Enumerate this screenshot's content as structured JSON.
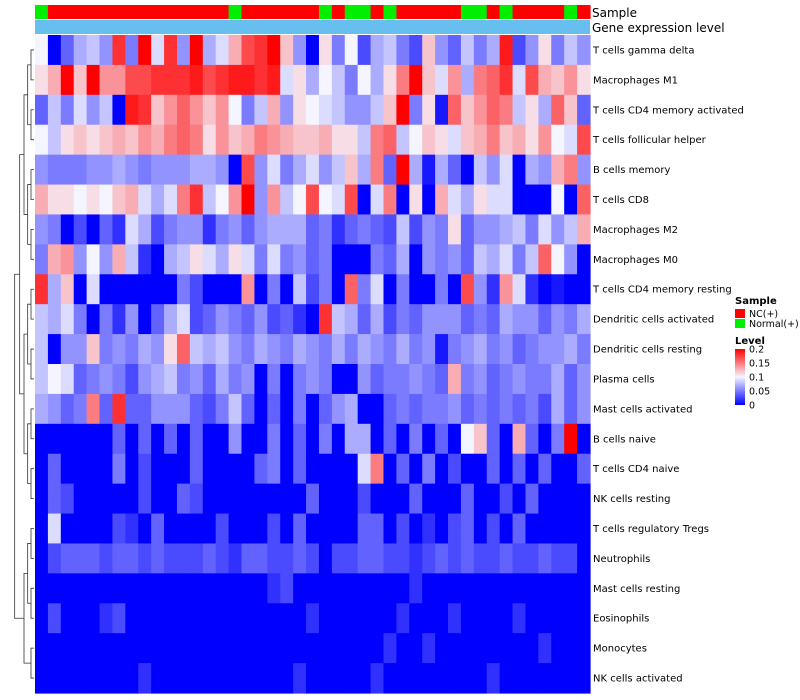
{
  "chart_data": {
    "type": "heatmap",
    "title": "",
    "annotation_track_labels": [
      "Sample",
      "Gene expression level"
    ],
    "samples": [
      "N",
      "C",
      "C",
      "C",
      "C",
      "C",
      "C",
      "C",
      "C",
      "C",
      "C",
      "C",
      "C",
      "C",
      "C",
      "N",
      "C",
      "C",
      "C",
      "C",
      "C",
      "C",
      "N",
      "C",
      "N",
      "N",
      "C",
      "N",
      "C",
      "C",
      "C",
      "C",
      "C",
      "N",
      "N",
      "C",
      "N",
      "C",
      "C",
      "C",
      "C",
      "N",
      "C"
    ],
    "rows": [
      "T cells gamma delta",
      "Macrophages M1",
      "T cells CD4 memory activated",
      "T cells follicular helper",
      "B cells memory",
      "T cells CD8",
      "Macrophages M2",
      "Macrophages M0",
      "T cells CD4 memory resting",
      "Dendritic cells activated",
      "Dendritic cells resting",
      "Plasma cells",
      "Mast cells activated",
      "B cells naive",
      "T cells CD4 naive",
      "NK cells resting",
      "T cells regulatory  Tregs",
      "Neutrophils",
      "Mast cells resting",
      "Eosinophils",
      "Monocytes",
      "NK cells activated"
    ],
    "values": [
      [
        0.1,
        0.0,
        0.04,
        0.07,
        0.08,
        0.06,
        0.18,
        0.05,
        0.2,
        0.09,
        0.18,
        0.06,
        0.2,
        0.07,
        0.09,
        0.13,
        0.17,
        0.18,
        0.2,
        0.12,
        0.06,
        0.0,
        0.11,
        0.05,
        0.1,
        0.03,
        0.07,
        0.08,
        0.05,
        0.03,
        0.12,
        0.06,
        0.04,
        0.08,
        0.05,
        0.07,
        0.19,
        0.03,
        0.06,
        0.11,
        0.05,
        0.08,
        0.06
      ],
      [
        0.11,
        0.13,
        0.2,
        0.12,
        0.2,
        0.14,
        0.14,
        0.17,
        0.17,
        0.18,
        0.18,
        0.18,
        0.19,
        0.17,
        0.18,
        0.19,
        0.19,
        0.18,
        0.19,
        0.09,
        0.11,
        0.07,
        0.1,
        0.08,
        0.05,
        0.1,
        0.07,
        0.11,
        0.15,
        0.2,
        0.12,
        0.09,
        0.14,
        0.07,
        0.15,
        0.16,
        0.18,
        0.09,
        0.17,
        0.13,
        0.12,
        0.14,
        0.11
      ],
      [
        0.04,
        0.08,
        0.05,
        0.09,
        0.06,
        0.08,
        0.0,
        0.19,
        0.18,
        0.12,
        0.14,
        0.16,
        0.14,
        0.12,
        0.14,
        0.1,
        0.05,
        0.08,
        0.13,
        0.06,
        0.11,
        0.1,
        0.09,
        0.08,
        0.06,
        0.06,
        0.08,
        0.12,
        0.2,
        0.05,
        0.11,
        0.01,
        0.16,
        0.12,
        0.14,
        0.16,
        0.15,
        0.08,
        0.11,
        0.07,
        0.16,
        0.12,
        0.04
      ],
      [
        0.1,
        0.08,
        0.11,
        0.12,
        0.11,
        0.12,
        0.13,
        0.12,
        0.14,
        0.13,
        0.15,
        0.16,
        0.15,
        0.11,
        0.14,
        0.12,
        0.13,
        0.15,
        0.14,
        0.13,
        0.12,
        0.12,
        0.13,
        0.11,
        0.11,
        0.08,
        0.15,
        0.16,
        0.08,
        0.1,
        0.12,
        0.11,
        0.09,
        0.12,
        0.13,
        0.15,
        0.12,
        0.13,
        0.11,
        0.14,
        0.1,
        0.09,
        0.17
      ],
      [
        0.06,
        0.05,
        0.05,
        0.05,
        0.06,
        0.06,
        0.07,
        0.06,
        0.05,
        0.06,
        0.06,
        0.06,
        0.07,
        0.07,
        0.06,
        0.0,
        0.17,
        0.06,
        0.09,
        0.05,
        0.07,
        0.09,
        0.06,
        0.08,
        0.12,
        0.07,
        0.15,
        0.04,
        0.2,
        0.07,
        0.01,
        0.07,
        0.04,
        0.0,
        0.08,
        0.06,
        0.09,
        0.0,
        0.07,
        0.06,
        0.13,
        0.15,
        0.06
      ],
      [
        0.13,
        0.11,
        0.11,
        0.1,
        0.11,
        0.1,
        0.12,
        0.13,
        0.09,
        0.07,
        0.09,
        0.15,
        0.18,
        0.08,
        0.1,
        0.14,
        0.2,
        0.06,
        0.14,
        0.08,
        0.1,
        0.17,
        0.1,
        0.09,
        0.17,
        0.0,
        0.09,
        0.15,
        0.0,
        0.11,
        0.0,
        0.13,
        0.09,
        0.07,
        0.11,
        0.09,
        0.09,
        0.0,
        0.0,
        0.0,
        0.1,
        0.0,
        0.16
      ],
      [
        0.06,
        0.05,
        0.0,
        0.03,
        0.0,
        0.04,
        0.02,
        0.09,
        0.07,
        0.03,
        0.05,
        0.06,
        0.06,
        0.02,
        0.05,
        0.06,
        0.04,
        0.06,
        0.07,
        0.07,
        0.07,
        0.04,
        0.05,
        0.02,
        0.04,
        0.05,
        0.04,
        0.03,
        0.08,
        0.03,
        0.06,
        0.05,
        0.11,
        0.04,
        0.06,
        0.06,
        0.07,
        0.08,
        0.05,
        0.09,
        0.06,
        0.08,
        0.13
      ],
      [
        0.05,
        0.13,
        0.14,
        0.06,
        0.1,
        0.06,
        0.13,
        0.08,
        0.02,
        0.0,
        0.07,
        0.08,
        0.11,
        0.09,
        0.07,
        0.11,
        0.09,
        0.05,
        0.09,
        0.05,
        0.06,
        0.04,
        0.05,
        0.0,
        0.0,
        0.0,
        0.05,
        0.04,
        0.07,
        0.0,
        0.06,
        0.05,
        0.06,
        0.04,
        0.08,
        0.07,
        0.09,
        0.05,
        0.08,
        0.16,
        0.1,
        0.06,
        0.0
      ],
      [
        0.18,
        0.07,
        0.12,
        0.0,
        0.09,
        0.0,
        0.0,
        0.0,
        0.0,
        0.0,
        0.0,
        0.05,
        0.03,
        0.0,
        0.0,
        0.0,
        0.14,
        0.0,
        0.05,
        0.0,
        0.08,
        0.03,
        0.05,
        0.0,
        0.16,
        0.05,
        0.09,
        0.0,
        0.05,
        0.0,
        0.0,
        0.05,
        0.0,
        0.17,
        0.06,
        0.02,
        0.14,
        0.09,
        0.02,
        0.0,
        0.01,
        0.0,
        0.0
      ],
      [
        0.08,
        0.07,
        0.09,
        0.05,
        0.0,
        0.05,
        0.02,
        0.06,
        0.0,
        0.04,
        0.07,
        0.09,
        0.03,
        0.04,
        0.06,
        0.05,
        0.04,
        0.06,
        0.03,
        0.04,
        0.02,
        0.0,
        0.18,
        0.08,
        0.07,
        0.04,
        0.07,
        0.03,
        0.05,
        0.04,
        0.06,
        0.06,
        0.06,
        0.04,
        0.05,
        0.04,
        0.07,
        0.06,
        0.06,
        0.04,
        0.06,
        0.05,
        0.07
      ],
      [
        0.08,
        0.0,
        0.06,
        0.06,
        0.12,
        0.05,
        0.06,
        0.05,
        0.07,
        0.06,
        0.11,
        0.16,
        0.08,
        0.07,
        0.08,
        0.06,
        0.05,
        0.07,
        0.06,
        0.05,
        0.07,
        0.06,
        0.05,
        0.07,
        0.05,
        0.07,
        0.06,
        0.05,
        0.07,
        0.05,
        0.06,
        0.01,
        0.05,
        0.06,
        0.07,
        0.05,
        0.06,
        0.04,
        0.05,
        0.06,
        0.06,
        0.07,
        0.05
      ],
      [
        0.08,
        0.1,
        0.09,
        0.04,
        0.05,
        0.06,
        0.05,
        0.03,
        0.06,
        0.07,
        0.08,
        0.05,
        0.06,
        0.04,
        0.07,
        0.05,
        0.06,
        0.0,
        0.05,
        0.0,
        0.05,
        0.06,
        0.05,
        0.0,
        0.0,
        0.06,
        0.04,
        0.05,
        0.05,
        0.06,
        0.05,
        0.04,
        0.13,
        0.05,
        0.06,
        0.04,
        0.05,
        0.06,
        0.05,
        0.05,
        0.07,
        0.04,
        0.06
      ],
      [
        0.07,
        0.06,
        0.04,
        0.05,
        0.15,
        0.04,
        0.18,
        0.04,
        0.04,
        0.06,
        0.06,
        0.06,
        0.04,
        0.03,
        0.05,
        0.08,
        0.04,
        0.0,
        0.04,
        0.0,
        0.05,
        0.0,
        0.04,
        0.06,
        0.07,
        0.0,
        0.0,
        0.04,
        0.05,
        0.04,
        0.05,
        0.05,
        0.06,
        0.04,
        0.05,
        0.04,
        0.05,
        0.04,
        0.05,
        0.03,
        0.07,
        0.04,
        0.06
      ],
      [
        0.0,
        0.0,
        0.0,
        0.0,
        0.0,
        0.0,
        0.04,
        0.0,
        0.04,
        0.0,
        0.04,
        0.0,
        0.04,
        0.0,
        0.0,
        0.06,
        0.0,
        0.0,
        0.05,
        0.0,
        0.04,
        0.0,
        0.05,
        0.0,
        0.07,
        0.07,
        0.0,
        0.04,
        0.0,
        0.05,
        0.0,
        0.04,
        0.0,
        0.1,
        0.12,
        0.04,
        0.0,
        0.13,
        0.04,
        0.0,
        0.05,
        0.2,
        0.0
      ],
      [
        0.0,
        0.04,
        0.0,
        0.0,
        0.0,
        0.0,
        0.05,
        0.0,
        0.03,
        0.0,
        0.0,
        0.0,
        0.04,
        0.0,
        0.0,
        0.0,
        0.0,
        0.04,
        0.05,
        0.0,
        0.04,
        0.0,
        0.0,
        0.0,
        0.0,
        0.09,
        0.15,
        0.0,
        0.04,
        0.0,
        0.05,
        0.0,
        0.03,
        0.0,
        0.0,
        0.04,
        0.0,
        0.04,
        0.0,
        0.04,
        0.0,
        0.0,
        0.04
      ],
      [
        0.0,
        0.04,
        0.03,
        0.0,
        0.0,
        0.0,
        0.0,
        0.0,
        0.03,
        0.0,
        0.0,
        0.04,
        0.03,
        0.0,
        0.0,
        0.0,
        0.0,
        0.0,
        0.0,
        0.0,
        0.0,
        0.04,
        0.0,
        0.0,
        0.0,
        0.03,
        0.0,
        0.0,
        0.0,
        0.04,
        0.0,
        0.0,
        0.0,
        0.04,
        0.0,
        0.0,
        0.03,
        0.0,
        0.04,
        0.0,
        0.0,
        0.0,
        0.0
      ],
      [
        0.0,
        0.09,
        0.0,
        0.0,
        0.0,
        0.0,
        0.03,
        0.02,
        0.0,
        0.04,
        0.0,
        0.0,
        0.0,
        0.0,
        0.03,
        0.0,
        0.0,
        0.0,
        0.03,
        0.0,
        0.04,
        0.0,
        0.0,
        0.0,
        0.0,
        0.04,
        0.04,
        0.0,
        0.03,
        0.0,
        0.02,
        0.0,
        0.03,
        0.04,
        0.0,
        0.03,
        0.0,
        0.04,
        0.0,
        0.0,
        0.0,
        0.0,
        0.0
      ],
      [
        0.0,
        0.03,
        0.04,
        0.04,
        0.04,
        0.03,
        0.04,
        0.04,
        0.03,
        0.04,
        0.03,
        0.03,
        0.03,
        0.04,
        0.03,
        0.02,
        0.04,
        0.04,
        0.03,
        0.03,
        0.04,
        0.03,
        0.0,
        0.03,
        0.03,
        0.04,
        0.04,
        0.03,
        0.03,
        0.02,
        0.03,
        0.04,
        0.03,
        0.04,
        0.03,
        0.03,
        0.04,
        0.03,
        0.03,
        0.04,
        0.03,
        0.03,
        0.0
      ],
      [
        0.0,
        0.0,
        0.0,
        0.0,
        0.0,
        0.0,
        0.0,
        0.0,
        0.0,
        0.0,
        0.0,
        0.0,
        0.0,
        0.0,
        0.0,
        0.0,
        0.0,
        0.0,
        0.02,
        0.03,
        0.0,
        0.0,
        0.0,
        0.0,
        0.0,
        0.0,
        0.0,
        0.0,
        0.0,
        0.02,
        0.0,
        0.0,
        0.0,
        0.0,
        0.0,
        0.0,
        0.0,
        0.0,
        0.0,
        0.0,
        0.0,
        0.0,
        0.0
      ],
      [
        0.0,
        0.03,
        0.0,
        0.0,
        0.0,
        0.02,
        0.03,
        0.0,
        0.0,
        0.0,
        0.0,
        0.0,
        0.0,
        0.0,
        0.0,
        0.0,
        0.0,
        0.0,
        0.0,
        0.0,
        0.0,
        0.02,
        0.0,
        0.0,
        0.0,
        0.0,
        0.0,
        0.0,
        0.02,
        0.0,
        0.0,
        0.0,
        0.02,
        0.0,
        0.0,
        0.0,
        0.0,
        0.02,
        0.0,
        0.0,
        0.0,
        0.0,
        0.0
      ],
      [
        0.0,
        0.0,
        0.0,
        0.0,
        0.0,
        0.0,
        0.0,
        0.0,
        0.0,
        0.0,
        0.0,
        0.0,
        0.0,
        0.0,
        0.0,
        0.0,
        0.0,
        0.0,
        0.0,
        0.0,
        0.0,
        0.0,
        0.0,
        0.0,
        0.0,
        0.0,
        0.0,
        0.02,
        0.0,
        0.0,
        0.02,
        0.0,
        0.0,
        0.0,
        0.0,
        0.0,
        0.0,
        0.0,
        0.0,
        0.02,
        0.0,
        0.0,
        0.0
      ],
      [
        0.0,
        0.0,
        0.0,
        0.0,
        0.0,
        0.0,
        0.0,
        0.0,
        0.02,
        0.0,
        0.0,
        0.0,
        0.0,
        0.0,
        0.0,
        0.0,
        0.0,
        0.0,
        0.0,
        0.0,
        0.02,
        0.0,
        0.0,
        0.0,
        0.0,
        0.0,
        0.02,
        0.0,
        0.0,
        0.0,
        0.0,
        0.0,
        0.0,
        0.0,
        0.0,
        0.02,
        0.0,
        0.0,
        0.0,
        0.0,
        0.0,
        0.0,
        0.0
      ]
    ],
    "legend": {
      "sample_title": "Sample",
      "sample_entries": [
        {
          "key": "C",
          "label": "NC(+)",
          "color": "#ff0000"
        },
        {
          "key": "N",
          "label": "Normal(+)",
          "color": "#00ee00"
        }
      ],
      "level_title": "Level",
      "level_ticks": [
        "0.2",
        "0.15",
        "0.1",
        "0.05",
        "0"
      ],
      "level_range": [
        0,
        0.2
      ]
    },
    "colors": {
      "low": "#0000ff",
      "mid": "#f5f5ff",
      "high": "#ff0000",
      "expression_bar": "#66bfee"
    }
  }
}
